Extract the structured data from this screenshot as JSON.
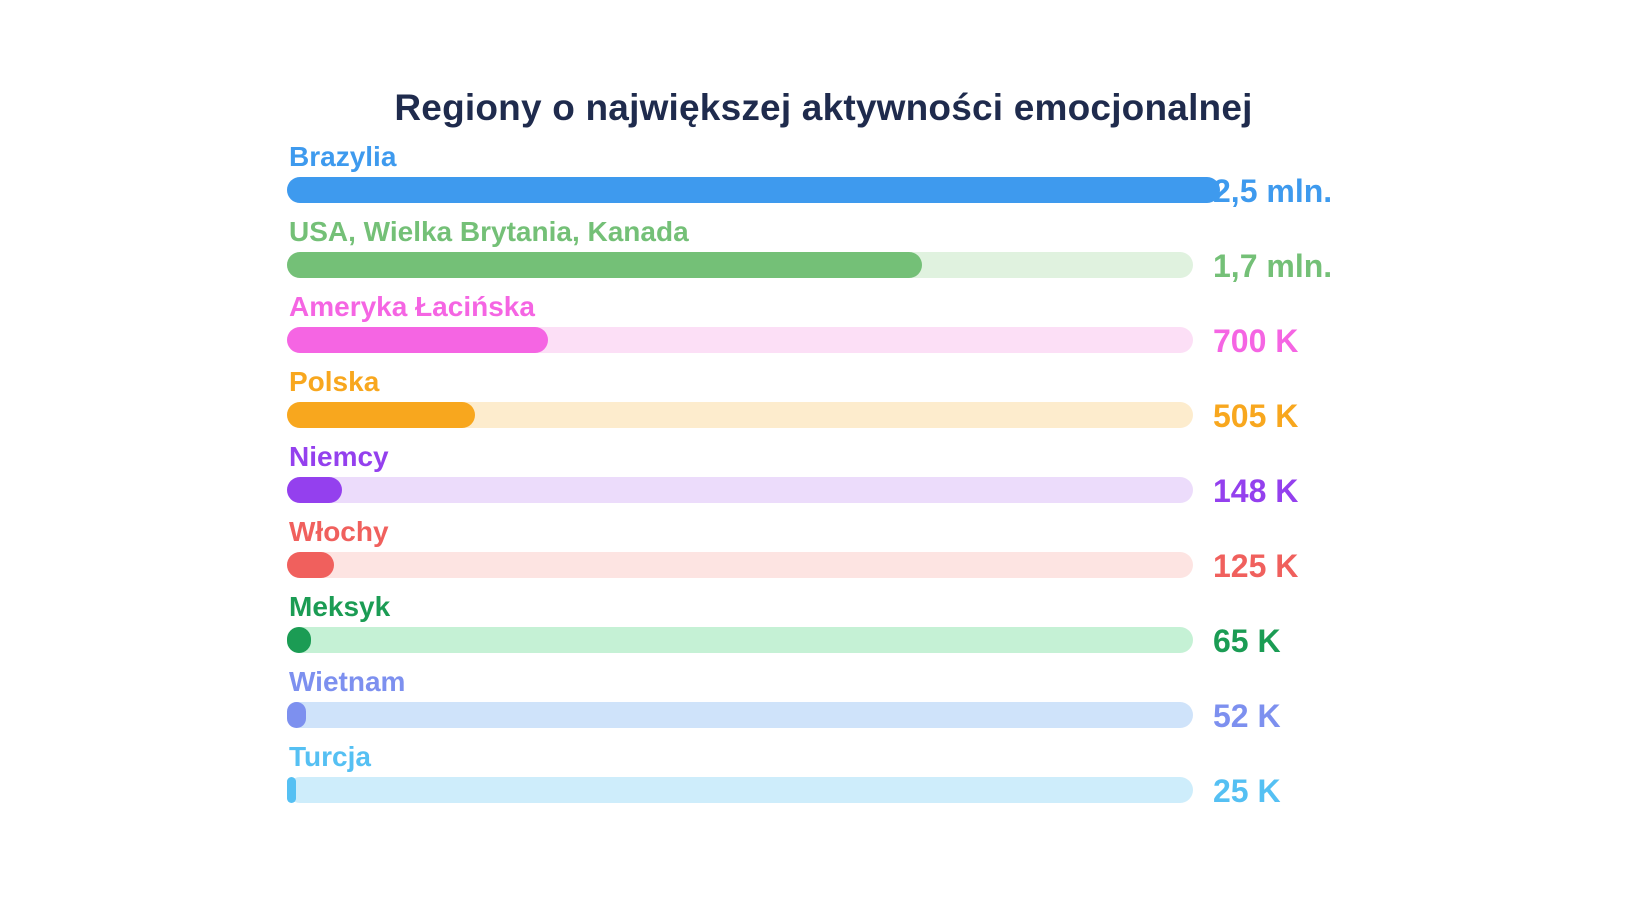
{
  "title": "Regiony o największej aktywności emocjonalnej",
  "chart_data": {
    "type": "bar",
    "orientation": "horizontal",
    "title": "Regiony o największej aktywności emocjonalnej",
    "categories": [
      "Brazylia",
      "USA, Wielka Brytania, Kanada",
      "Ameryka Łacińska",
      "Polska",
      "Niemcy",
      "Włochy",
      "Meksyk",
      "Wietnam",
      "Turcja"
    ],
    "values_thousands": [
      2500,
      1700,
      700,
      505,
      148,
      125,
      65,
      52,
      25
    ],
    "value_labels": [
      "2,5 mln.",
      "1,7 mln.",
      "700 K",
      "505 K",
      "148 K",
      "125 K",
      "65 K",
      "52 K",
      "25 K"
    ],
    "xlim_thousands": [
      0,
      3000
    ],
    "grid": false,
    "legend": false,
    "value_label_position": "right-of-track"
  },
  "colors": {
    "title_text": "#1f2b4d",
    "background": "#ffffff"
  },
  "rows": [
    {
      "label": "Brazylia",
      "value_k": 2500,
      "value_label": "2,5 mln.",
      "color": "#3e9aee",
      "track_color": "#d9eafc"
    },
    {
      "label": "USA, Wielka Brytania, Kanada",
      "value_k": 1700,
      "value_label": "1,7 mln.",
      "color": "#74c077",
      "track_color": "#e0f2df"
    },
    {
      "label": "Ameryka Łacińska",
      "value_k": 700,
      "value_label": "700 K",
      "color": "#f565e3",
      "track_color": "#fcdff6"
    },
    {
      "label": "Polska",
      "value_k": 505,
      "value_label": "505 K",
      "color": "#f8a71e",
      "track_color": "#fdeccd"
    },
    {
      "label": "Niemcy",
      "value_k": 148,
      "value_label": "148 K",
      "color": "#9440ee",
      "track_color": "#ecdcfb"
    },
    {
      "label": "Włochy",
      "value_k": 125,
      "value_label": "125 K",
      "color": "#f0605d",
      "track_color": "#fde4e2"
    },
    {
      "label": "Meksyk",
      "value_k": 65,
      "value_label": "65 K",
      "color": "#1b9c54",
      "track_color": "#c5f1d5"
    },
    {
      "label": "Wietnam",
      "value_k": 52,
      "value_label": "52 K",
      "color": "#7d90ef",
      "track_color": "#cfe3fa"
    },
    {
      "label": "Turcja",
      "value_k": 25,
      "value_label": "25 K",
      "color": "#55c0f3",
      "track_color": "#ceedfb"
    }
  ]
}
